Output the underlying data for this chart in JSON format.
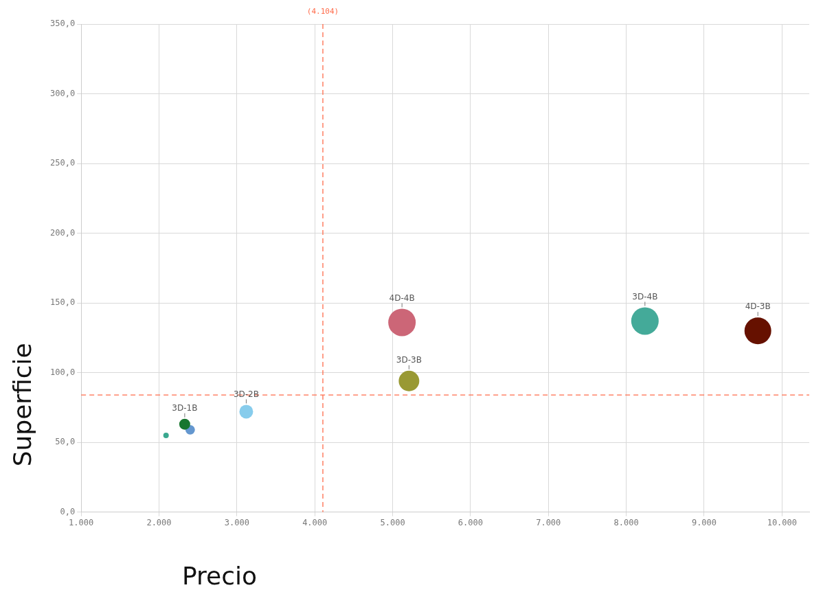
{
  "chart_data": {
    "type": "bubble",
    "xlabel": "Precio",
    "ylabel": "Superficie",
    "xlim": [
      1000,
      10350
    ],
    "ylim": [
      0,
      350
    ],
    "xticks": [
      {
        "value": 1000,
        "label": "1.000"
      },
      {
        "value": 2000,
        "label": "2.000"
      },
      {
        "value": 3000,
        "label": "3.000"
      },
      {
        "value": 4000,
        "label": "4.000"
      },
      {
        "value": 5000,
        "label": "5.000"
      },
      {
        "value": 6000,
        "label": "6.000"
      },
      {
        "value": 7000,
        "label": "7.000"
      },
      {
        "value": 8000,
        "label": "8.000"
      },
      {
        "value": 9000,
        "label": "9.000"
      },
      {
        "value": 10000,
        "label": "10.000"
      }
    ],
    "yticks": [
      {
        "value": 0,
        "label": "0,0"
      },
      {
        "value": 50,
        "label": "50,0"
      },
      {
        "value": 100,
        "label": "100,0"
      },
      {
        "value": 150,
        "label": "150,0"
      },
      {
        "value": 200,
        "label": "200,0"
      },
      {
        "value": 250,
        "label": "250,0"
      },
      {
        "value": 300,
        "label": "300,0"
      },
      {
        "value": 350,
        "label": "350,0"
      }
    ],
    "grid": true,
    "legend": false,
    "series": [
      {
        "color": "#3aa88f",
        "x": [
          2090
        ],
        "values": [
          55
        ],
        "sizes": [
          0.04
        ]
      },
      {
        "name": "3D-1B",
        "color": "#17762e",
        "x": [
          2330
        ],
        "values": [
          63
        ],
        "sizes": [
          0.16
        ]
      },
      {
        "color": "#6497cf",
        "x": [
          2400
        ],
        "values": [
          59
        ],
        "sizes": [
          0.12
        ]
      },
      {
        "name": "3D-2B",
        "color": "#87ccec",
        "x": [
          3120
        ],
        "values": [
          72
        ],
        "sizes": [
          0.25
        ]
      },
      {
        "name": "4D-4B",
        "color": "#cc6677",
        "x": [
          5120
        ],
        "values": [
          136
        ],
        "sizes": [
          1
        ]
      },
      {
        "name": "3D-3B",
        "color": "#999933",
        "x": [
          5210
        ],
        "values": [
          94
        ],
        "sizes": [
          0.56
        ]
      },
      {
        "name": "3D-4B",
        "color": "#44aa99",
        "x": [
          8240
        ],
        "values": [
          137
        ],
        "sizes": [
          1
        ]
      },
      {
        "name": "4D-3B",
        "color": "#661100",
        "x": [
          9690
        ],
        "values": [
          130
        ],
        "sizes": [
          0.95
        ]
      }
    ],
    "ref_lines": [
      {
        "axis": "x",
        "value": 4104,
        "label": "(4.104)",
        "color": "#ff6b4a",
        "line_style": "dashed"
      },
      {
        "axis": "y",
        "value": 84,
        "color": "#ff6b4a",
        "line_style": "dashed"
      }
    ]
  }
}
